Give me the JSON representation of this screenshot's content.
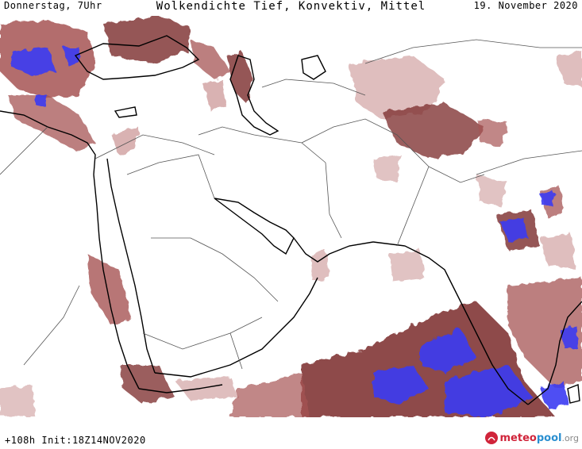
{
  "header": {
    "day_time": "Donnerstag, 7Uhr",
    "title": "Wolkendichte  Tief, Konvektiv, Mittel",
    "date": "19. November 2020"
  },
  "footer": {
    "run_info": "+108h Init:18Z14NOV2020",
    "logo_part1": "meteo",
    "logo_part2": "pool",
    "logo_part3": ".org"
  },
  "colors": {
    "cloud_dark": "#7a2a2a",
    "cloud_mid": "#a65454",
    "cloud_light": "#c99292",
    "convective": "#3a3af2",
    "coastline": "#000000",
    "border": "#555555",
    "logo_red": "#d0243a",
    "logo_blue": "#2a8fd0"
  },
  "icons": {
    "logo": "meteopool-logo-icon"
  }
}
